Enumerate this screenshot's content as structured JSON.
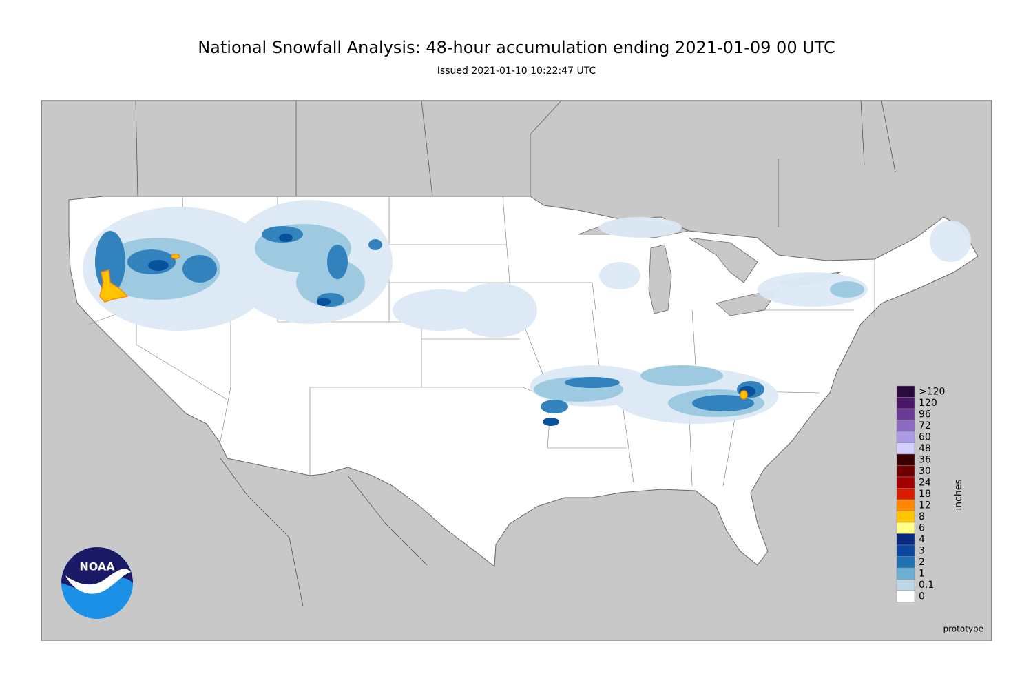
{
  "header": {
    "title": "National Snowfall Analysis: 48-hour accumulation ending 2021-01-09 00 UTC",
    "subtitle": "Issued 2021-01-10 10:22:47 UTC"
  },
  "legend": {
    "unit": "inches",
    "items": [
      {
        "label": ">120",
        "color": "#2b0b3f"
      },
      {
        "label": "120",
        "color": "#4a1766"
      },
      {
        "label": "96",
        "color": "#6b3a98"
      },
      {
        "label": "72",
        "color": "#8d6bc4"
      },
      {
        "label": "60",
        "color": "#ab9be6"
      },
      {
        "label": "48",
        "color": "#d4d0ff"
      },
      {
        "label": "36",
        "color": "#3a0000"
      },
      {
        "label": "30",
        "color": "#6e0000"
      },
      {
        "label": "24",
        "color": "#a20000"
      },
      {
        "label": "18",
        "color": "#d81c00"
      },
      {
        "label": "12",
        "color": "#ff8800"
      },
      {
        "label": "8",
        "color": "#ffc400"
      },
      {
        "label": "6",
        "color": "#ffff88"
      },
      {
        "label": "4",
        "color": "#08277f"
      },
      {
        "label": "3",
        "color": "#0a47a0"
      },
      {
        "label": "2",
        "color": "#2171b5"
      },
      {
        "label": "1",
        "color": "#6baed6"
      },
      {
        "label": "0.1",
        "color": "#bdd7e7"
      },
      {
        "label": "0",
        "color": "#ffffff"
      }
    ]
  },
  "logo": {
    "text": "NOAA"
  },
  "footer": {
    "note": "prototype"
  }
}
